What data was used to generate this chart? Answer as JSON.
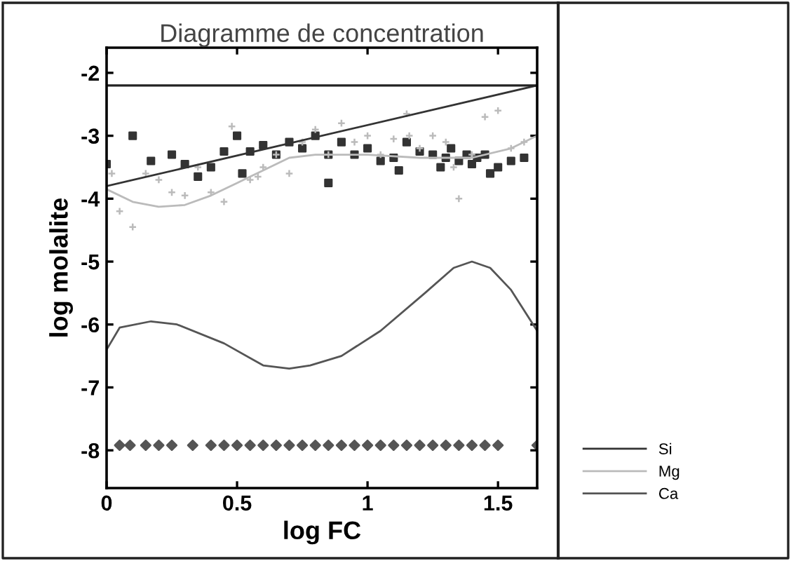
{
  "chart_data": {
    "type": "line",
    "title": "Diagramme de concentration",
    "xlabel": "log FC",
    "ylabel": "log molalite",
    "xlim": [
      0,
      1.65
    ],
    "xticks": [
      0,
      0.5,
      1,
      1.5
    ],
    "ylim": [
      -8.6,
      -1.6
    ],
    "yticks": [
      -2,
      -3,
      -4,
      -5,
      -6,
      -7,
      -8
    ],
    "legend": "right",
    "grid": false,
    "ref_lines": [
      {
        "axis": "y",
        "value": -2.2,
        "color": "#222222"
      }
    ],
    "series": [
      {
        "name": "Si",
        "type": "line",
        "color": "#333333",
        "x": [
          0,
          1.65
        ],
        "values": [
          -3.8,
          -2.2
        ]
      },
      {
        "name": "Mg",
        "type": "line",
        "color": "#bbbbbb",
        "x": [
          0,
          0.1,
          0.2,
          0.3,
          0.4,
          0.5,
          0.6,
          0.7,
          0.8,
          1.0,
          1.2,
          1.4,
          1.55,
          1.65
        ],
        "values": [
          -3.85,
          -4.05,
          -4.13,
          -4.1,
          -3.95,
          -3.75,
          -3.55,
          -3.35,
          -3.3,
          -3.3,
          -3.35,
          -3.35,
          -3.2,
          -3.0
        ]
      },
      {
        "name": "Ca",
        "type": "line",
        "color": "#555555",
        "x": [
          0,
          0.05,
          0.17,
          0.27,
          0.45,
          0.6,
          0.7,
          0.78,
          0.9,
          1.05,
          1.22,
          1.33,
          1.4,
          1.47,
          1.55,
          1.65
        ],
        "values": [
          -6.4,
          -6.05,
          -5.95,
          -6.0,
          -6.3,
          -6.65,
          -6.7,
          -6.65,
          -6.5,
          -6.1,
          -5.5,
          -5.1,
          -5.0,
          -5.1,
          -5.45,
          -6.1
        ]
      },
      {
        "type": "scatter",
        "color": "#333333",
        "marker": "square",
        "x": [
          0,
          0.1,
          0.17,
          0.25,
          0.3,
          0.4,
          0.45,
          0.5,
          0.55,
          0.6,
          0.65,
          0.7,
          0.75,
          0.8,
          0.85,
          0.9,
          0.95,
          1.0,
          1.05,
          1.1,
          1.15,
          1.2,
          1.25,
          1.3,
          1.32,
          1.35,
          1.38,
          1.4,
          1.42,
          1.45,
          1.5,
          1.55,
          1.6,
          0.35,
          0.52,
          0.85,
          1.12,
          1.28,
          1.47
        ],
        "values": [
          -3.45,
          -3.0,
          -3.4,
          -3.3,
          -3.45,
          -3.5,
          -3.25,
          -3.0,
          -3.25,
          -3.15,
          -3.3,
          -3.1,
          -3.2,
          -3.0,
          -3.3,
          -3.1,
          -3.3,
          -3.2,
          -3.4,
          -3.35,
          -3.1,
          -3.25,
          -3.3,
          -3.35,
          -3.2,
          -3.4,
          -3.3,
          -3.45,
          -3.35,
          -3.3,
          -3.5,
          -3.4,
          -3.35,
          -3.65,
          -3.6,
          -3.75,
          -3.55,
          -3.5,
          -3.6
        ]
      },
      {
        "type": "scatter",
        "color": "#bbbbbb",
        "marker": "cross",
        "x": [
          0.02,
          0.05,
          0.1,
          0.15,
          0.2,
          0.25,
          0.3,
          0.35,
          0.4,
          0.45,
          0.48,
          0.55,
          0.6,
          0.65,
          0.7,
          0.75,
          0.8,
          0.85,
          0.9,
          0.95,
          1.0,
          1.05,
          1.1,
          1.15,
          1.2,
          1.25,
          1.3,
          1.35,
          1.4,
          1.45,
          1.5,
          1.55,
          1.6,
          0.58,
          1.16,
          1.33
        ],
        "values": [
          -3.6,
          -4.2,
          -4.45,
          -3.6,
          -3.7,
          -3.9,
          -3.95,
          -3.5,
          -3.9,
          -4.05,
          -2.85,
          -3.7,
          -3.5,
          -3.3,
          -3.6,
          -3.1,
          -2.9,
          -3.3,
          -2.8,
          -3.1,
          -3.0,
          -3.3,
          -3.05,
          -2.65,
          -3.2,
          -3.0,
          -3.1,
          -4.0,
          -3.3,
          -2.7,
          -2.6,
          -3.2,
          -3.1,
          -3.65,
          -3.0,
          -3.5
        ]
      },
      {
        "type": "scatter",
        "color": "#555555",
        "marker": "diamond",
        "x": [
          0.05,
          0.09,
          0.15,
          0.2,
          0.25,
          0.33,
          0.4,
          0.45,
          0.5,
          0.55,
          0.6,
          0.65,
          0.7,
          0.75,
          0.8,
          0.85,
          0.9,
          0.95,
          1.0,
          1.05,
          1.1,
          1.15,
          1.2,
          1.25,
          1.3,
          1.35,
          1.4,
          1.45,
          1.5,
          1.65
        ],
        "values": [
          -7.92,
          -7.92,
          -7.92,
          -7.92,
          -7.92,
          -7.92,
          -7.92,
          -7.92,
          -7.92,
          -7.92,
          -7.92,
          -7.92,
          -7.92,
          -7.92,
          -7.92,
          -7.92,
          -7.92,
          -7.92,
          -7.92,
          -7.92,
          -7.92,
          -7.92,
          -7.92,
          -7.92,
          -7.92,
          -7.92,
          -7.92,
          -7.92,
          -7.92,
          -7.92
        ]
      }
    ]
  }
}
